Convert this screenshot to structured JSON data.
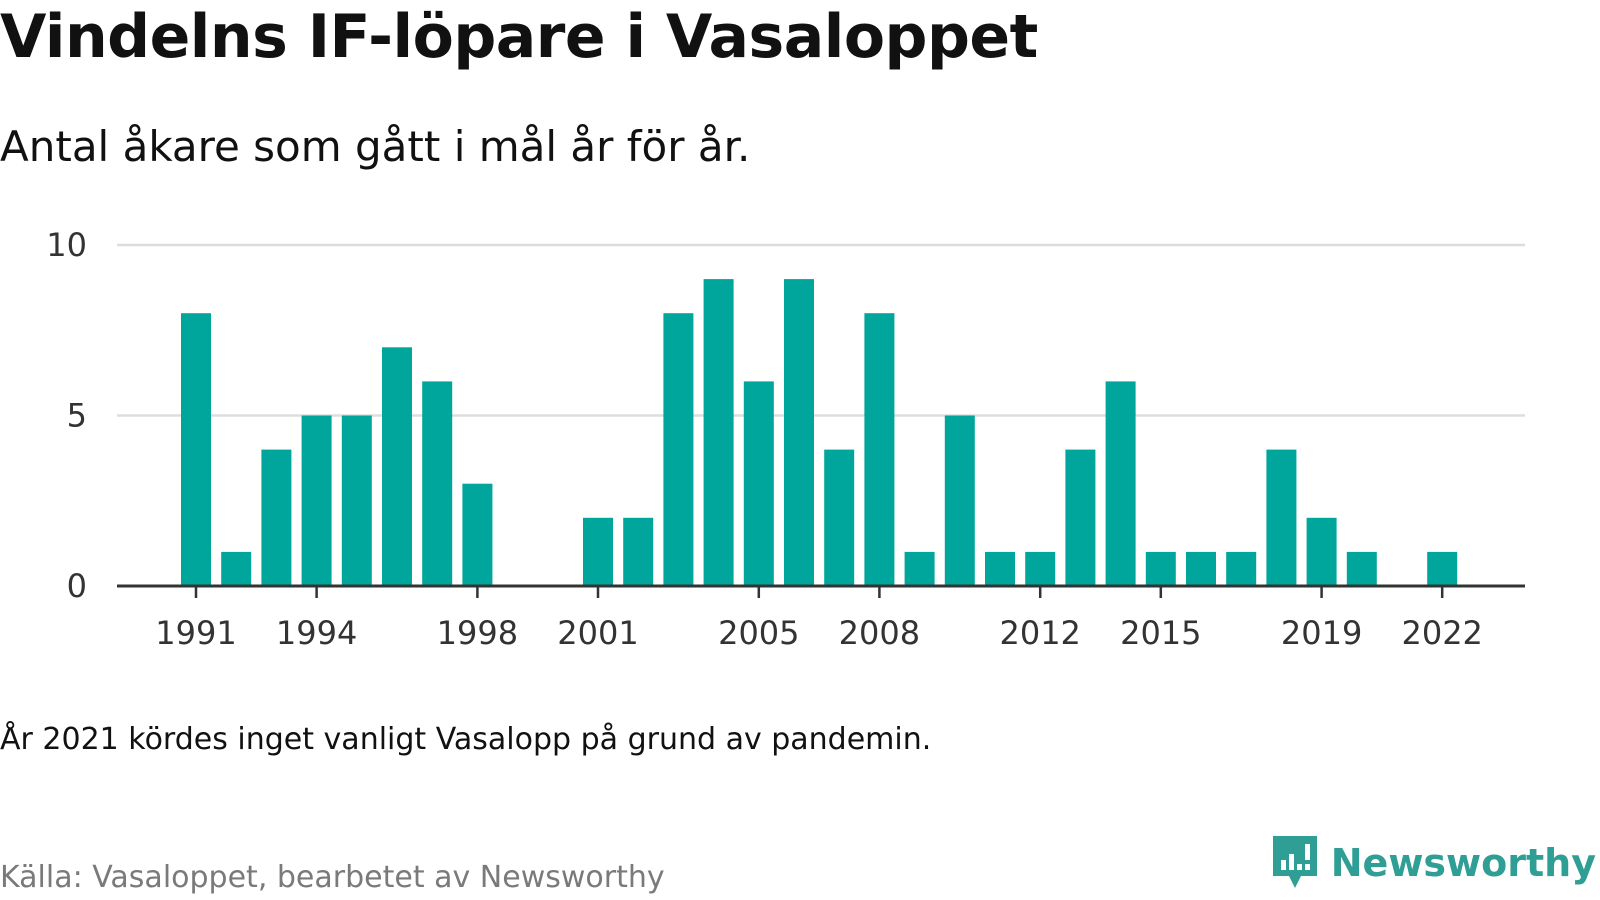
{
  "title": "Vindelns IF-löpare i Vasaloppet",
  "subtitle": "Antal åkare som gått i mål år för år.",
  "note": "År 2021 kördes inget vanligt Vasalopp på grund av pandemin.",
  "source": "Källa: Vasaloppet, bearbetet av Newsworthy",
  "brand": {
    "name": "Newsworthy",
    "icon": "newsworthy-logo-icon"
  },
  "colors": {
    "bar": "#00a69b",
    "grid": "#dddddd",
    "axis": "#333333",
    "brand": "#2f9e94"
  },
  "chart_data": {
    "type": "bar",
    "x": [
      1991,
      1992,
      1993,
      1994,
      1995,
      1996,
      1997,
      1998,
      1999,
      2000,
      2001,
      2002,
      2003,
      2004,
      2005,
      2006,
      2007,
      2008,
      2009,
      2010,
      2011,
      2012,
      2013,
      2014,
      2015,
      2016,
      2017,
      2018,
      2019,
      2020,
      2021,
      2022
    ],
    "values": [
      8,
      1,
      4,
      5,
      5,
      7,
      6,
      3,
      0,
      0,
      2,
      2,
      8,
      9,
      6,
      9,
      4,
      8,
      1,
      5,
      1,
      1,
      4,
      6,
      1,
      1,
      1,
      4,
      2,
      1,
      0,
      1
    ],
    "x_ticks": [
      "1991",
      "1994",
      "1998",
      "2001",
      "2005",
      "2008",
      "2012",
      "2015",
      "2019",
      "2022"
    ],
    "y_ticks": [
      "0",
      "5",
      "10"
    ],
    "ylim": [
      0,
      10
    ],
    "grid": true,
    "legend": "none"
  }
}
